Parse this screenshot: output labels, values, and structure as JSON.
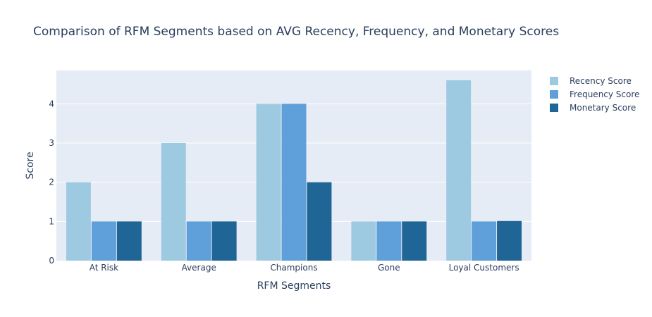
{
  "chart_data": {
    "type": "bar",
    "title": "Comparison of RFM Segments based on AVG Recency, Frequency, and Monetary Scores",
    "xlabel": "RFM Segments",
    "ylabel": "Score",
    "categories": [
      "At Risk",
      "Average",
      "Champions",
      "Gone",
      "Loyal Customers"
    ],
    "series": [
      {
        "name": "Recency Score",
        "values": [
          2,
          3,
          4,
          1,
          4.6
        ],
        "color": "#9ecae1"
      },
      {
        "name": "Frequency Score",
        "values": [
          1,
          1,
          4,
          1,
          1
        ],
        "color": "#5f9fda"
      },
      {
        "name": "Monetary Score",
        "values": [
          1,
          1,
          2,
          1,
          1.01
        ],
        "color": "#1f6595"
      }
    ],
    "ylim": [
      0,
      4.85
    ],
    "yticks": [
      0,
      1,
      2,
      3,
      4
    ],
    "grid": true,
    "legend_position": "top-right"
  },
  "colors": {
    "plot_background": "#e5ecf6",
    "gridline": "#ffffff",
    "text": "#2a3f5f"
  }
}
